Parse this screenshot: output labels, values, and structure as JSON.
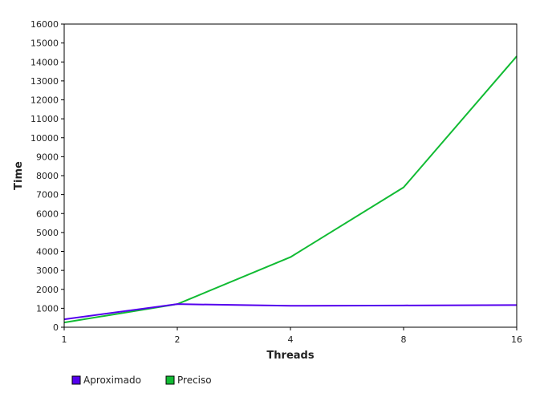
{
  "chart_data": {
    "type": "line",
    "xlabel": "Threads",
    "ylabel": "Time",
    "x": [
      "1",
      "2",
      "4",
      "8",
      "16"
    ],
    "ylim": [
      0,
      16000
    ],
    "yticks": [
      0,
      1000,
      2000,
      3000,
      4000,
      5000,
      6000,
      7000,
      8000,
      9000,
      10000,
      11000,
      12000,
      13000,
      14000,
      15000,
      16000
    ],
    "grid": false,
    "legend_position": "bottom-left",
    "series": [
      {
        "name": "Aproximado",
        "color": "#5500ee",
        "values": [
          420,
          1220,
          1130,
          1150,
          1170
        ]
      },
      {
        "name": "Preciso",
        "color": "#11bb33",
        "values": [
          250,
          1220,
          3700,
          7380,
          14300
        ]
      }
    ]
  }
}
